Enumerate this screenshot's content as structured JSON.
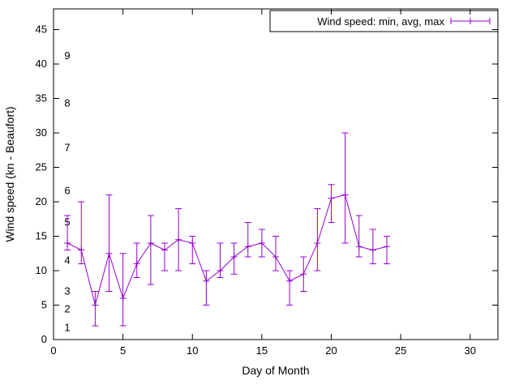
{
  "chart_data": {
    "type": "line",
    "title": "",
    "xlabel": "Day of Month",
    "ylabel": "Wind speed (kn - Beaufort)",
    "legend_label": "Wind speed: min, avg, max",
    "legend_position": "top-right",
    "grid": false,
    "series_color": "#9400d3",
    "axis_color": "#000000",
    "xlim": [
      0,
      32
    ],
    "ylim": [
      0,
      48
    ],
    "xticks": [
      0,
      5,
      10,
      15,
      20,
      25,
      30
    ],
    "yticks": [
      0,
      5,
      10,
      15,
      20,
      25,
      30,
      35,
      40,
      45
    ],
    "beaufort_labels": [
      {
        "label": "1",
        "kn": 1.7
      },
      {
        "label": "2",
        "kn": 4.4
      },
      {
        "label": "3",
        "kn": 7.0
      },
      {
        "label": "4",
        "kn": 11.5
      },
      {
        "label": "5",
        "kn": 17.0
      },
      {
        "label": "6",
        "kn": 21.6
      },
      {
        "label": "7",
        "kn": 27.8
      },
      {
        "label": "8",
        "kn": 34.3
      },
      {
        "label": "9",
        "kn": 41.2
      }
    ],
    "x": [
      1,
      2,
      3,
      4,
      5,
      6,
      7,
      8,
      9,
      10,
      11,
      12,
      13,
      14,
      15,
      16,
      17,
      18,
      19,
      20,
      21,
      22,
      23,
      24
    ],
    "series": [
      {
        "name": "avg",
        "values": [
          14,
          13,
          5,
          12.5,
          6,
          11,
          14,
          13,
          14.5,
          14,
          8.5,
          10,
          12,
          13.5,
          14,
          12,
          8.5,
          9.5,
          14,
          20.5,
          21,
          13.5,
          13,
          13.5
        ]
      },
      {
        "name": "min",
        "values": [
          13,
          11,
          2,
          7,
          2,
          9,
          8,
          10,
          10,
          11,
          5,
          9,
          9.5,
          12,
          12,
          10,
          5,
          7,
          10,
          17,
          14,
          12,
          11,
          11
        ]
      },
      {
        "name": "max",
        "values": [
          18,
          20,
          7,
          21,
          12.5,
          14,
          18,
          14,
          19,
          15,
          10,
          14,
          14,
          17,
          16,
          15,
          10,
          12,
          19,
          22.5,
          30,
          18,
          16,
          15
        ]
      }
    ]
  }
}
